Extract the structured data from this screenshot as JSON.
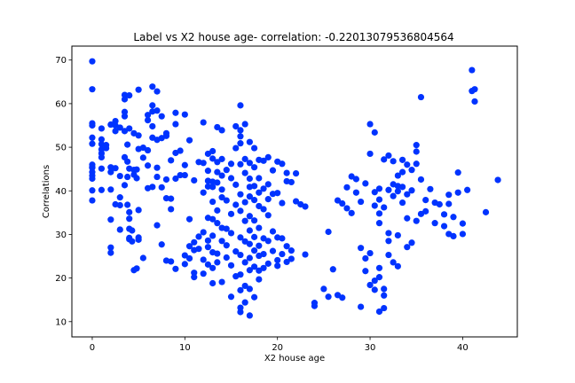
{
  "chart_data": {
    "type": "scatter",
    "title": "Label vs X2 house age- correlation: -0.22013079536804564",
    "xlabel": "X2 house age",
    "ylabel": "Correlations",
    "xlim": [
      -2.2,
      45.9
    ],
    "ylim": [
      6.5,
      73.2
    ],
    "xticks": [
      0,
      10,
      20,
      30,
      40
    ],
    "yticks": [
      10,
      20,
      30,
      40,
      50,
      60,
      70
    ],
    "grid": false,
    "marker_color": "#0033ff",
    "x": [
      0,
      0,
      0,
      0,
      0,
      0,
      0,
      0,
      0,
      0,
      0,
      0,
      0,
      0,
      1,
      1,
      1,
      1,
      1,
      1,
      1,
      1,
      1.5,
      1.5,
      2,
      2,
      2,
      2,
      2,
      2,
      2,
      2.5,
      2.5,
      2.5,
      2.5,
      2.5,
      3,
      3,
      3,
      3,
      3,
      3.5,
      3.5,
      3.5,
      3.5,
      3.5,
      3.5,
      3.5,
      3.8,
      3.8,
      3.8,
      3.8,
      4,
      4,
      4,
      4,
      4,
      4,
      4,
      4,
      4.3,
      4.3,
      4.5,
      4.5,
      4.5,
      4.5,
      4.8,
      4.8,
      4.8,
      5,
      5,
      5,
      5,
      5,
      5,
      5.5,
      5.5,
      5.5,
      6,
      6,
      6,
      6,
      6,
      6.5,
      6.5,
      6.5,
      6.5,
      6.5,
      6.5,
      7,
      7,
      7,
      7,
      7,
      7,
      7.5,
      7.5,
      7.5,
      7.5,
      8,
      8,
      8,
      8,
      8,
      8.5,
      8.5,
      8.5,
      8.5,
      9,
      9,
      9,
      9,
      9,
      9.5,
      9.5,
      10,
      10,
      10,
      10,
      10,
      10.5,
      10.5,
      10.5,
      10.5,
      11,
      11,
      11,
      11,
      11,
      11.5,
      11.5,
      11.5,
      12,
      12,
      12,
      12,
      12,
      12,
      12.5,
      12.5,
      12.5,
      12.5,
      12.5,
      12.5,
      12.5,
      12.5,
      13,
      13,
      13,
      13,
      13,
      13,
      13,
      13,
      13,
      13,
      13.5,
      13.5,
      13.5,
      13.5,
      13.5,
      13.5,
      13.5,
      13.5,
      14,
      14,
      14,
      14,
      14,
      14,
      14,
      14,
      14.5,
      14.5,
      14.5,
      14.5,
      14.5,
      15,
      15,
      15,
      15,
      15,
      15,
      15.5,
      15.5,
      15.5,
      15.5,
      15.5,
      15.5,
      16,
      16,
      16,
      16,
      16,
      16,
      16,
      16,
      16,
      16,
      16,
      16,
      16,
      16.5,
      16.5,
      16.5,
      16.5,
      16.5,
      16.5,
      16.5,
      16.5,
      16.5,
      17,
      17,
      17,
      17,
      17,
      17,
      17,
      17,
      17,
      17,
      17,
      17,
      17.5,
      17.5,
      17.5,
      17.5,
      17.5,
      17.5,
      17.5,
      17.5,
      17.5,
      18,
      18,
      18,
      18,
      18,
      18,
      18,
      18,
      18,
      18.5,
      18.5,
      18.5,
      18.5,
      18.5,
      18.5,
      19,
      19,
      19,
      19,
      19,
      19,
      19.5,
      19.5,
      19.5,
      19.5,
      20,
      20,
      20,
      20,
      20,
      20.5,
      20.5,
      20.5,
      20.5,
      21,
      21,
      21,
      21,
      21.5,
      21.5,
      21.5,
      22,
      22,
      22.5,
      23,
      23,
      24,
      24,
      25,
      25.5,
      25.5,
      26,
      26.5,
      26.5,
      27,
      27,
      27.5,
      27.5,
      28,
      28,
      28.5,
      28.5,
      29,
      29,
      29,
      29.5,
      29.5,
      29.5,
      30,
      30,
      30,
      30,
      30.5,
      30.5,
      30.5,
      30.5,
      30.5,
      31,
      31,
      31,
      31,
      31,
      31,
      31,
      31.5,
      31.5,
      31.5,
      31.5,
      31.5,
      32,
      32,
      32,
      32,
      32,
      32.5,
      32.5,
      32.5,
      32.5,
      33,
      33,
      33,
      33,
      33,
      33.5,
      33.5,
      33.5,
      33.5,
      34,
      34,
      34,
      34,
      34.5,
      34.5,
      34.5,
      35,
      35,
      35,
      35,
      35.5,
      35.5,
      35.5,
      36,
      36,
      36.5,
      37,
      37,
      37.5,
      38,
      38,
      38.5,
      38.5,
      38.5,
      39,
      39,
      39.5,
      39.5,
      40,
      40,
      40.5,
      41,
      41,
      41.3,
      41.3,
      42.5,
      43.8
    ],
    "y": [
      69.7,
      63.3,
      55.5,
      55,
      52.2,
      50.8,
      46,
      45.3,
      44.3,
      43.5,
      42.8,
      40.1,
      37.8,
      45.4,
      54.3,
      51.8,
      50.7,
      49.5,
      48.6,
      47.7,
      45.1,
      40.2,
      50.5,
      49.8,
      55.2,
      45.4,
      40.3,
      33.4,
      27,
      25.8,
      44.3,
      56,
      55,
      53.7,
      45.2,
      36.9,
      54.5,
      43.4,
      38.5,
      36.7,
      31.1,
      62,
      61,
      58.1,
      57.1,
      53.7,
      47.7,
      41.3,
      50.6,
      46.7,
      43.2,
      36.8,
      61.9,
      54.3,
      45.1,
      35.1,
      33.6,
      31.3,
      28.9,
      29.2,
      30.9,
      28.4,
      53.2,
      44.8,
      43.7,
      21.8,
      44.9,
      42.9,
      22.2,
      63.2,
      52.7,
      49.6,
      35.6,
      29.3,
      28.8,
      49.9,
      47.6,
      24.6,
      57.4,
      56.2,
      49.3,
      45.8,
      40.6,
      63.9,
      59.6,
      58.2,
      54.8,
      52.2,
      40.9,
      62.8,
      58.4,
      51.7,
      45.3,
      43.2,
      32.1,
      57.1,
      52.1,
      40.8,
      27.7,
      53.2,
      52.6,
      42.6,
      38.3,
      24,
      47,
      38.2,
      35.8,
      23.8,
      57.9,
      55.3,
      48.7,
      42.8,
      22.1,
      49.2,
      43.6,
      57.5,
      45.9,
      43.6,
      25.2,
      23.2,
      51.6,
      33.5,
      27.3,
      24.5,
      42.4,
      28.2,
      26.4,
      21.2,
      20.2,
      46.6,
      29.5,
      26.7,
      55.7,
      46.4,
      39.6,
      30.5,
      24.2,
      21,
      48.5,
      44.6,
      42.3,
      41,
      33.8,
      28.6,
      27.1,
      23.1,
      49.1,
      47.4,
      42.1,
      40.9,
      37.5,
      33.5,
      29.7,
      25.9,
      22.3,
      18.8,
      54.6,
      46.6,
      44.3,
      41.9,
      35.5,
      32.6,
      25.6,
      23.6,
      53.9,
      47.3,
      43.5,
      40.3,
      38.5,
      31.5,
      28.5,
      19.1,
      44.8,
      37.8,
      31.3,
      27.5,
      24.7,
      46.2,
      42.9,
      34.7,
      30.3,
      22.9,
      15.7,
      54.8,
      49.8,
      41.4,
      36.8,
      26.1,
      20.4,
      59.6,
      53.9,
      52.5,
      50.9,
      46.1,
      39.2,
      35.4,
      29.3,
      25.3,
      20.8,
      17.2,
      13.2,
      12.2,
      55.3,
      47.3,
      44.1,
      37.4,
      33.1,
      28.4,
      23.6,
      18.2,
      14.4,
      51.2,
      46.4,
      42.8,
      40.9,
      38.7,
      34.2,
      30.9,
      27.8,
      24.6,
      21.8,
      17.5,
      11.4,
      49.8,
      45.4,
      41.1,
      37.9,
      33.2,
      29.4,
      26.3,
      22.6,
      15.6,
      47.1,
      42.9,
      39.6,
      36.5,
      31.5,
      27.4,
      25.1,
      21.7,
      19.7,
      46.9,
      40.5,
      35.8,
      29.1,
      25.5,
      22.3,
      47.7,
      41.5,
      38.1,
      34.4,
      28.5,
      23.3,
      44.7,
      39.3,
      30.7,
      26.2,
      46.7,
      39.5,
      29.3,
      24.1,
      22.8,
      46.2,
      37.2,
      29.1,
      25.5,
      44.1,
      42.2,
      27.3,
      23.7,
      42,
      26.3,
      24.4,
      44,
      37.6,
      36.9,
      25.4,
      36.4,
      14.3,
      13.6,
      17.5,
      30.6,
      15.7,
      22,
      37.8,
      16.1,
      37.1,
      15.5,
      40.8,
      36,
      43.3,
      34.9,
      42.7,
      39.6,
      37.5,
      13.4,
      26.9,
      41.7,
      24.5,
      21.6,
      55.3,
      48.5,
      25.7,
      18.4,
      53.4,
      39.7,
      36.6,
      19.4,
      17.3,
      40.5,
      38,
      34.8,
      32.6,
      22.3,
      20.2,
      12.3,
      47.2,
      36.2,
      17.5,
      16,
      13.1,
      48.1,
      40.2,
      30.3,
      28.5,
      25.3,
      46.8,
      41.5,
      38.8,
      23.6,
      43.5,
      41.1,
      39.9,
      29.8,
      22.7,
      47.1,
      44.3,
      40.9,
      37.3,
      46,
      39.2,
      33.7,
      27.1,
      44.8,
      40.1,
      28.1,
      50.5,
      49,
      46.2,
      33.1,
      61.5,
      42.6,
      34.7,
      37.9,
      35.3,
      40.4,
      37.3,
      32.6,
      36.9,
      34.6,
      31.9,
      39.1,
      37,
      30.1,
      34,
      29.6,
      44.2,
      39.6,
      30.1,
      32.5,
      40.2,
      67.7,
      62.9,
      63.3,
      60.5,
      35.1,
      42.5
    ]
  }
}
